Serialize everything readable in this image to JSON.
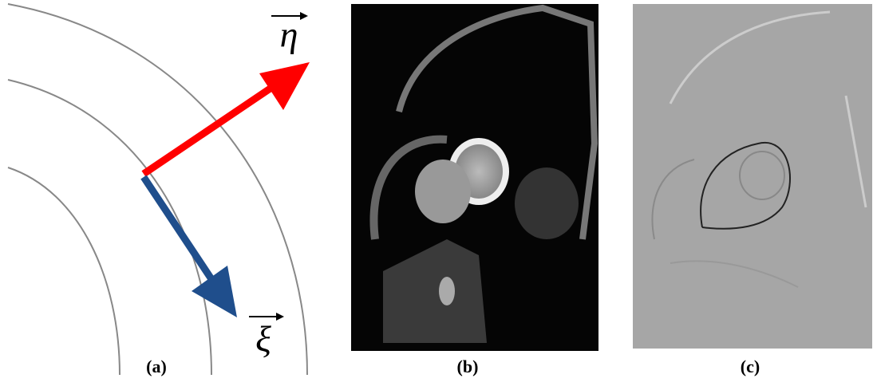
{
  "panel_a": {
    "label": "(a)",
    "eta": "η",
    "xi": "ξ"
  },
  "panel_b": {
    "label": "(b)"
  },
  "panel_c": {
    "label": "(c)"
  }
}
